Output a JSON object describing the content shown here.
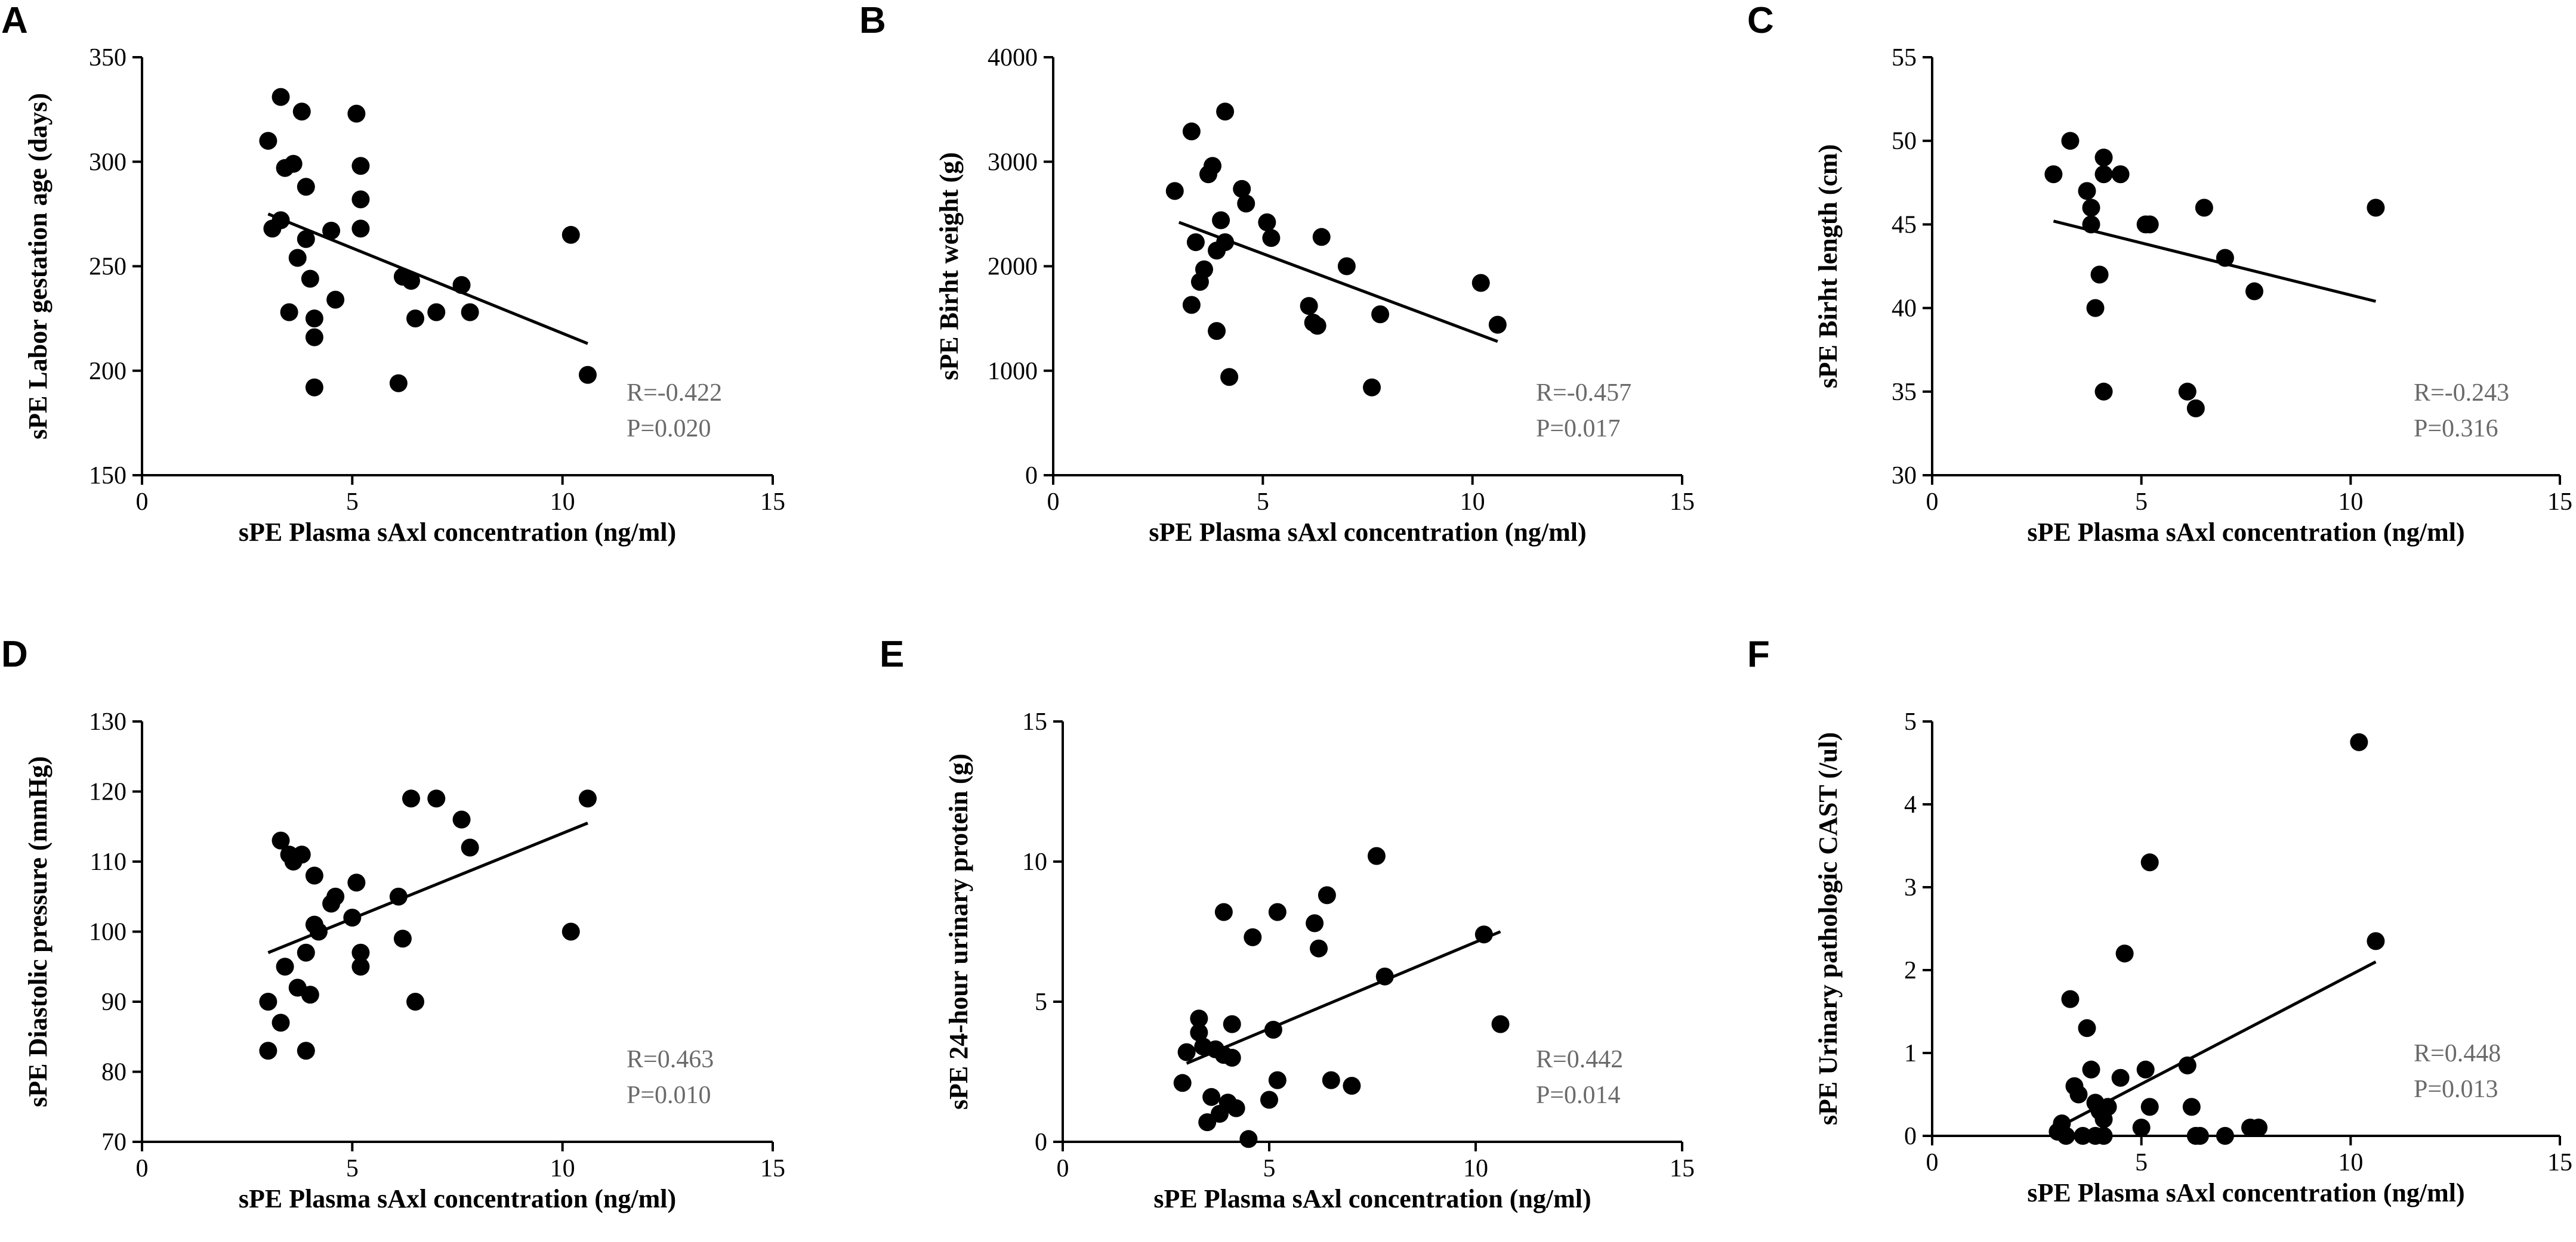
{
  "chart_data": [
    {
      "type": "scatter",
      "panel": "A",
      "ylabel": "sPE Labor gestation age (days)",
      "xlabel": "sPE Plasma sAxl concentration (ng/ml)",
      "xlim": [
        0,
        15
      ],
      "xticks": [
        0,
        5,
        10,
        15
      ],
      "ylim": [
        150,
        350
      ],
      "yticks": [
        150,
        200,
        250,
        300,
        350
      ],
      "x": [
        3.0,
        3.1,
        3.3,
        3.3,
        3.4,
        3.5,
        3.6,
        3.7,
        3.8,
        3.9,
        3.9,
        4.0,
        4.1,
        4.1,
        4.1,
        4.5,
        4.6,
        5.1,
        5.2,
        5.2,
        5.2,
        6.1,
        6.2,
        6.4,
        6.5,
        7.0,
        7.6,
        7.8,
        10.2,
        10.6
      ],
      "y": [
        310,
        268,
        331,
        272,
        297,
        228,
        299,
        254,
        324,
        288,
        263,
        244,
        225,
        216,
        192,
        267,
        234,
        323,
        298,
        282,
        268,
        194,
        245,
        243,
        225,
        228,
        241,
        228,
        265,
        198
      ],
      "fit": {
        "x": [
          3.0,
          10.6
        ],
        "y": [
          275,
          213
        ]
      },
      "annotation": [
        "R=-0.422",
        "P=0.020"
      ]
    },
    {
      "type": "scatter",
      "panel": "B",
      "ylabel": "sPE Birht weight (g)",
      "xlabel": "sPE Plasma sAxl concentration (ng/ml)",
      "xlim": [
        0,
        15
      ],
      "xticks": [
        0,
        5,
        10,
        15
      ],
      "ylim": [
        0,
        4000
      ],
      "yticks": [
        0,
        1000,
        2000,
        3000,
        4000
      ],
      "x": [
        2.9,
        3.3,
        3.3,
        3.4,
        3.5,
        3.6,
        3.7,
        3.8,
        3.9,
        3.9,
        4.0,
        4.1,
        4.1,
        4.2,
        4.5,
        4.6,
        5.1,
        5.2,
        6.1,
        6.2,
        6.3,
        6.4,
        7.0,
        7.6,
        7.8,
        10.2,
        10.6
      ],
      "y": [
        2720,
        3290,
        1630,
        2230,
        1850,
        1970,
        2880,
        2960,
        2150,
        1380,
        2440,
        3480,
        2230,
        940,
        2740,
        2600,
        2420,
        2270,
        1620,
        1460,
        1430,
        2280,
        2000,
        840,
        1540,
        1840,
        1440
      ],
      "fit": {
        "x": [
          3.0,
          10.6
        ],
        "y": [
          2420,
          1280
        ]
      },
      "annotation": [
        "R=-0.457",
        "P=0.017"
      ]
    },
    {
      "type": "scatter",
      "panel": "C",
      "ylabel": "sPE Birht length (cm)",
      "xlabel": "sPE Plasma sAxl concentration (ng/ml)",
      "xlim": [
        0,
        15
      ],
      "xticks": [
        0,
        5,
        10,
        15
      ],
      "ylim": [
        30,
        55
      ],
      "yticks": [
        30,
        35,
        40,
        45,
        50,
        55
      ],
      "x": [
        2.9,
        3.3,
        3.7,
        3.8,
        3.8,
        3.9,
        4.0,
        4.1,
        4.1,
        4.1,
        4.5,
        5.1,
        5.2,
        6.1,
        6.3,
        6.5,
        7.0,
        7.7,
        10.6
      ],
      "y": [
        48,
        50,
        47,
        46,
        45,
        40,
        42,
        49,
        48,
        35,
        48,
        45,
        45,
        35,
        34,
        46,
        43,
        41,
        46
      ],
      "fit": {
        "x": [
          2.9,
          10.6
        ],
        "y": [
          45.2,
          40.4
        ]
      },
      "annotation": [
        "R=-0.243",
        "P=0.316"
      ]
    },
    {
      "type": "scatter",
      "panel": "D",
      "ylabel": "sPE Diastolic pressure (mmHg)",
      "xlabel": "sPE Plasma sAxl concentration (ng/ml)",
      "xlim": [
        0,
        15
      ],
      "xticks": [
        0,
        5,
        10,
        15
      ],
      "ylim": [
        70,
        130
      ],
      "yticks": [
        70,
        80,
        90,
        100,
        110,
        120,
        130
      ],
      "x": [
        3.0,
        3.0,
        3.3,
        3.3,
        3.4,
        3.5,
        3.6,
        3.7,
        3.8,
        3.9,
        3.9,
        4.0,
        4.1,
        4.1,
        4.2,
        4.5,
        4.6,
        5.0,
        5.1,
        5.2,
        5.2,
        6.1,
        6.2,
        6.4,
        6.5,
        7.0,
        7.6,
        7.8,
        10.2,
        10.6
      ],
      "y": [
        90,
        83,
        113,
        87,
        95,
        111,
        110,
        92,
        111,
        97,
        83,
        91,
        108,
        101,
        100,
        104,
        105,
        102,
        107,
        97,
        95,
        105,
        99,
        119,
        90,
        119,
        116,
        112,
        100,
        119
      ],
      "fit": {
        "x": [
          3.0,
          10.6
        ],
        "y": [
          97,
          115.5
        ]
      },
      "annotation": [
        "R=0.463",
        "P=0.010"
      ]
    },
    {
      "type": "scatter",
      "panel": "E",
      "ylabel": "sPE 24-hour urinary protein (g)",
      "xlabel": "sPE Plasma sAxl concentration (ng/ml)",
      "xlim": [
        0,
        15
      ],
      "xticks": [
        0,
        5,
        10,
        15
      ],
      "ylim": [
        0,
        15
      ],
      "yticks": [
        0,
        5,
        10,
        15
      ],
      "x": [
        2.9,
        3.0,
        3.3,
        3.3,
        3.4,
        3.5,
        3.6,
        3.7,
        3.8,
        3.9,
        3.9,
        4.0,
        4.1,
        4.1,
        4.2,
        4.5,
        4.6,
        5.0,
        5.1,
        5.2,
        5.2,
        6.1,
        6.2,
        6.4,
        6.5,
        7.0,
        7.6,
        7.8,
        10.2,
        10.6
      ],
      "y": [
        2.1,
        3.2,
        4.4,
        3.9,
        3.4,
        0.7,
        1.6,
        3.3,
        1.0,
        8.2,
        3.1,
        1.4,
        4.2,
        3.0,
        1.2,
        0.1,
        7.3,
        1.5,
        4.0,
        8.2,
        2.2,
        7.8,
        6.9,
        8.8,
        2.2,
        2.0,
        10.2,
        5.9,
        7.4,
        4.2
      ],
      "fit": {
        "x": [
          3.0,
          10.6
        ],
        "y": [
          2.8,
          7.5
        ]
      },
      "annotation": [
        "R=0.442",
        "P=0.014"
      ]
    },
    {
      "type": "scatter",
      "panel": "F",
      "ylabel": "sPE Urinary  pathologic CAST (/ul)",
      "xlabel": "sPE Plasma sAxl concentration (ng/ml)",
      "xlim": [
        0,
        15
      ],
      "xticks": [
        0,
        5,
        10,
        15
      ],
      "ylim": [
        0,
        5
      ],
      "yticks": [
        0,
        1,
        2,
        3,
        4,
        5
      ],
      "x": [
        3.0,
        3.1,
        3.2,
        3.3,
        3.4,
        3.5,
        3.6,
        3.7,
        3.8,
        3.9,
        3.9,
        4.0,
        4.1,
        4.1,
        4.2,
        4.5,
        4.6,
        5.0,
        5.1,
        5.2,
        5.2,
        6.1,
        6.2,
        6.3,
        6.4,
        7.0,
        7.6,
        7.8,
        10.2,
        10.6
      ],
      "y": [
        0.05,
        0.15,
        0.0,
        1.65,
        0.6,
        0.5,
        0.0,
        1.3,
        0.8,
        0.4,
        0.0,
        0.3,
        0.2,
        0.0,
        0.35,
        0.7,
        2.2,
        0.1,
        0.8,
        3.3,
        0.35,
        0.85,
        0.35,
        0.0,
        0.0,
        0.0,
        0.1,
        0.1,
        4.75,
        2.35
      ],
      "fit": {
        "x": [
          3.0,
          10.6
        ],
        "y": [
          0.1,
          2.1
        ]
      },
      "annotation": [
        "R=0.448",
        "P=0.013"
      ]
    }
  ]
}
